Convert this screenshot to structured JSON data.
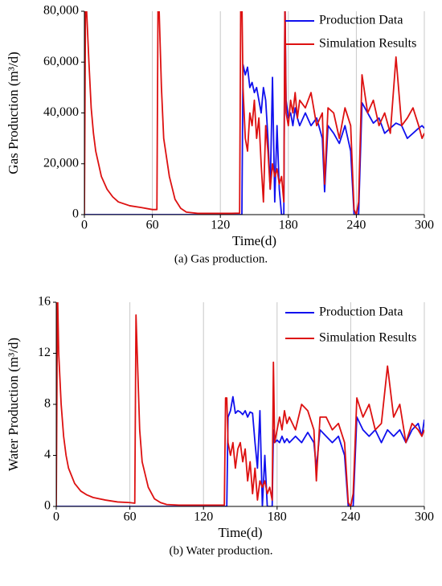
{
  "chart_data": [
    {
      "type": "line",
      "ylabel": "Gas Production (m³/d)",
      "xlabel": "Time(d)",
      "caption": "(a) Gas production.",
      "xlim": [
        0,
        300
      ],
      "xticks": [
        0,
        60,
        120,
        180,
        240,
        300
      ],
      "ylim": [
        0,
        80000
      ],
      "yticks": [
        0,
        {
          "value": 20000,
          "label": "20,000"
        },
        {
          "value": 40000,
          "label": "40,000"
        },
        {
          "value": 60000,
          "label": "60,000"
        },
        {
          "value": 80000,
          "label": "80,000"
        }
      ],
      "grid": "x",
      "legend": "upper right",
      "x": [
        0,
        1,
        2,
        4,
        6,
        8,
        10,
        15,
        20,
        25,
        30,
        40,
        50,
        60,
        64,
        65,
        66,
        68,
        70,
        75,
        80,
        85,
        90,
        100,
        110,
        120,
        130,
        137,
        138,
        139,
        140,
        142,
        144,
        146,
        148,
        150,
        152,
        154,
        156,
        158,
        160,
        162,
        164,
        166,
        168,
        170,
        172,
        174,
        176,
        177,
        178,
        180,
        182,
        184,
        186,
        188,
        190,
        195,
        200,
        205,
        210,
        212,
        215,
        220,
        225,
        230,
        235,
        238,
        240,
        242,
        245,
        250,
        255,
        260,
        265,
        270,
        275,
        280,
        285,
        290,
        295,
        298,
        300
      ],
      "series": [
        {
          "name": "Production Data",
          "color": "#1010ee",
          "values": [
            0,
            0,
            0,
            0,
            0,
            0,
            0,
            0,
            0,
            0,
            0,
            0,
            0,
            0,
            0,
            0,
            0,
            0,
            0,
            0,
            0,
            0,
            0,
            0,
            0,
            0,
            0,
            0,
            0,
            0,
            59000,
            55000,
            58000,
            50000,
            52000,
            48000,
            50000,
            45000,
            40000,
            50000,
            45000,
            30000,
            10000,
            54000,
            5000,
            35000,
            10000,
            0,
            0,
            85000,
            45000,
            38000,
            40000,
            35000,
            42000,
            38000,
            35000,
            40000,
            35000,
            38000,
            30000,
            9000,
            35000,
            32000,
            28000,
            35000,
            25000,
            0,
            0,
            0,
            44000,
            40000,
            36000,
            38000,
            32000,
            34000,
            36000,
            35000,
            30000,
            32000,
            34000,
            35000,
            34000
          ]
        },
        {
          "name": "Simulation Results",
          "color": "#dd1111",
          "values": [
            0,
            85000,
            80000,
            60000,
            42000,
            32000,
            25000,
            15000,
            10000,
            7000,
            5000,
            3500,
            2800,
            2000,
            2000,
            85000,
            80000,
            50000,
            30000,
            15000,
            6000,
            2500,
            1000,
            500,
            500,
            500,
            500,
            600,
            85000,
            85000,
            50000,
            30000,
            25000,
            40000,
            35000,
            45000,
            30000,
            38000,
            20000,
            5000,
            35000,
            25000,
            10000,
            20000,
            15000,
            18000,
            12000,
            15000,
            5000,
            85000,
            40000,
            35000,
            45000,
            40000,
            48000,
            38000,
            45000,
            42000,
            48000,
            35000,
            40000,
            12000,
            42000,
            40000,
            30000,
            42000,
            35000,
            2000,
            0,
            5000,
            55000,
            40000,
            45000,
            35000,
            40000,
            32000,
            62000,
            35000,
            38000,
            42000,
            35000,
            30000,
            32000
          ]
        }
      ]
    },
    {
      "type": "line",
      "ylabel": "Water Production (m³/d)",
      "xlabel": "Time(d)",
      "caption": "(b) Water production.",
      "xlim": [
        0,
        300
      ],
      "xticks": [
        0,
        60,
        120,
        180,
        240,
        300
      ],
      "ylim": [
        0,
        16
      ],
      "yticks": [
        0,
        4,
        8,
        12,
        16
      ],
      "grid": "x",
      "legend": "upper right",
      "x": [
        0,
        1,
        2,
        4,
        6,
        8,
        10,
        15,
        20,
        25,
        30,
        40,
        50,
        60,
        64,
        65,
        66,
        68,
        70,
        75,
        80,
        85,
        90,
        100,
        110,
        120,
        130,
        137,
        138,
        139,
        140,
        142,
        144,
        146,
        148,
        150,
        152,
        154,
        156,
        158,
        160,
        162,
        164,
        166,
        168,
        170,
        172,
        174,
        176,
        177,
        178,
        180,
        182,
        184,
        186,
        188,
        190,
        195,
        200,
        205,
        210,
        212,
        215,
        220,
        225,
        230,
        235,
        238,
        240,
        242,
        245,
        250,
        255,
        260,
        265,
        270,
        275,
        280,
        285,
        290,
        295,
        298,
        300
      ],
      "series": [
        {
          "name": "Production Data",
          "color": "#1010ee",
          "values": [
            0,
            0,
            0,
            0,
            0,
            0,
            0,
            0,
            0,
            0,
            0,
            0,
            0,
            0,
            0,
            0,
            0,
            0,
            0,
            0,
            0,
            0,
            0,
            0,
            0,
            0,
            0,
            0,
            0,
            0,
            7,
            7.5,
            8.6,
            7.3,
            7.5,
            7.4,
            7.2,
            7.5,
            7,
            7.4,
            7.3,
            5,
            3,
            7.5,
            0,
            4,
            0,
            0,
            0,
            6,
            5,
            5.2,
            5,
            5.5,
            5,
            5.3,
            5,
            5.5,
            5,
            5.8,
            5,
            3,
            6,
            5.5,
            5,
            5.5,
            4,
            0,
            0,
            0,
            7,
            6,
            5.5,
            6,
            5,
            6,
            5.5,
            6,
            5,
            6,
            6.5,
            5.5,
            6.8
          ]
        },
        {
          "name": "Simulation Results",
          "color": "#dd1111",
          "values": [
            0,
            17,
            12,
            8,
            5.5,
            4,
            3,
            1.8,
            1.2,
            0.9,
            0.7,
            0.5,
            0.35,
            0.3,
            0.25,
            15,
            12,
            6,
            3.5,
            1.5,
            0.6,
            0.3,
            0.15,
            0.1,
            0.1,
            0.1,
            0.1,
            0.1,
            8.5,
            8.5,
            5,
            4,
            5,
            3,
            4.5,
            5,
            3.5,
            4.5,
            2,
            3.5,
            1,
            3,
            0.5,
            2,
            1.5,
            2,
            1,
            1.5,
            0.5,
            11.3,
            5,
            6,
            7,
            6,
            7.5,
            6.5,
            7,
            6,
            8,
            7.5,
            6,
            2,
            7,
            7,
            6,
            6.5,
            5,
            0.3,
            0,
            1,
            8.5,
            7,
            8,
            6,
            6.5,
            11,
            7,
            8,
            5,
            6.5,
            6,
            5.5,
            6
          ]
        }
      ]
    }
  ]
}
